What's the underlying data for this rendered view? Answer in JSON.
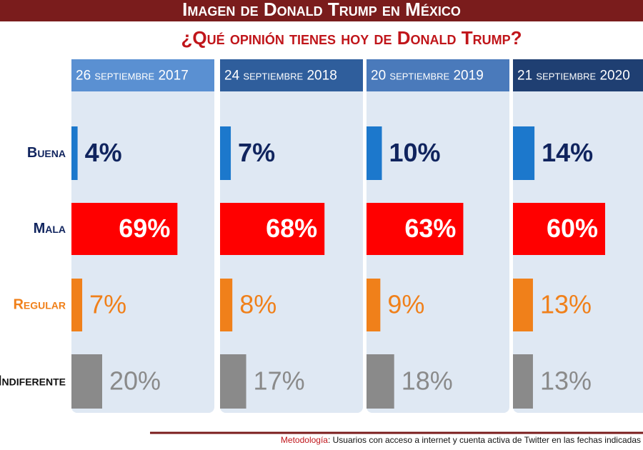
{
  "chart_data": {
    "type": "bar",
    "title": "Imagen de Donald Trump en México",
    "subtitle": "¿Qué opinión tienes hoy de Donald Trump?",
    "categories": [
      "Buena",
      "Mala",
      "Regular",
      "Indiferente"
    ],
    "colors": [
      "#1c78cc",
      "#ff0000",
      "#f0801a",
      "#8a8a8a"
    ],
    "series": [
      {
        "name": "26 septiembre 2017",
        "color": "#5a90d2",
        "values": [
          4,
          69,
          7,
          20
        ],
        "value_labels": [
          "4%",
          "69%",
          "7%",
          "20%"
        ]
      },
      {
        "name": "24 septiembre 2018",
        "color": "#2f5e9c",
        "values": [
          7,
          68,
          8,
          17
        ],
        "value_labels": [
          "7%",
          "68%",
          "8%",
          "17%"
        ]
      },
      {
        "name": "20 septiembre 2019",
        "color": "#4a7abb",
        "values": [
          10,
          63,
          9,
          18
        ],
        "value_labels": [
          "10%",
          "63%",
          "9%",
          "18%"
        ]
      },
      {
        "name": "21 septiembre 2020",
        "color": "#1f3f72",
        "values": [
          14,
          60,
          13,
          13
        ],
        "value_labels": [
          "14%",
          "60%",
          "13%",
          "13%"
        ]
      }
    ],
    "footer": {
      "label": "Metodología",
      "text": ": Usuarios con acceso a internet y cuenta activa de Twitter en las fechas indicadas"
    }
  }
}
